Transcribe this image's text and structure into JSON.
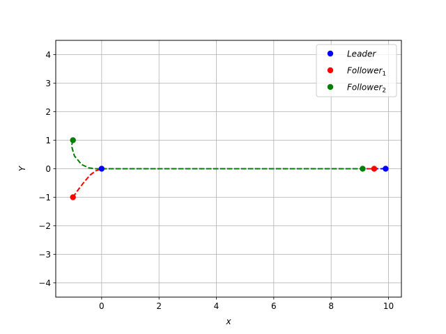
{
  "chart_data": {
    "type": "line",
    "xlabel": "x",
    "ylabel": "Y",
    "xlim": [
      -1.6,
      10.45
    ],
    "ylim": [
      -4.5,
      4.5
    ],
    "grid": true,
    "x_ticks": [
      0,
      2,
      4,
      6,
      8,
      10
    ],
    "y_ticks": [
      -4,
      -3,
      -2,
      -1,
      0,
      1,
      2,
      3,
      4
    ],
    "x_tick_labels": [
      "0",
      "2",
      "4",
      "6",
      "8",
      "10"
    ],
    "y_tick_labels": [
      "−4",
      "−3",
      "−2",
      "−1",
      "0",
      "1",
      "2",
      "3",
      "4"
    ],
    "legend_position": "top-right",
    "series": [
      {
        "name": "Leader",
        "legend_base": "Leader",
        "legend_sub": "",
        "color": "#0000ff",
        "line": [
          [
            0,
            0
          ],
          [
            9.9,
            0
          ]
        ],
        "markers": [
          [
            0,
            0
          ],
          [
            9.9,
            0
          ]
        ]
      },
      {
        "name": "Follower1",
        "legend_base": "Follower",
        "legend_sub": "1",
        "color": "#ff0000",
        "line": [
          [
            -1,
            -1
          ],
          [
            -0.85,
            -0.78
          ],
          [
            -0.6,
            -0.45
          ],
          [
            -0.4,
            -0.22
          ],
          [
            -0.2,
            -0.07
          ],
          [
            0,
            0
          ],
          [
            9.5,
            0
          ]
        ],
        "markers": [
          [
            -1,
            -1
          ],
          [
            9.5,
            0
          ]
        ]
      },
      {
        "name": "Follower2",
        "legend_base": "Follower",
        "legend_sub": "2",
        "color": "#008000",
        "line": [
          [
            -1,
            1
          ],
          [
            -1.05,
            0.8
          ],
          [
            -0.95,
            0.45
          ],
          [
            -0.7,
            0.15
          ],
          [
            -0.45,
            0.03
          ],
          [
            -0.2,
            0
          ],
          [
            0,
            0
          ],
          [
            9.1,
            0
          ]
        ],
        "markers": [
          [
            -1,
            1
          ],
          [
            9.1,
            0
          ]
        ]
      }
    ]
  }
}
